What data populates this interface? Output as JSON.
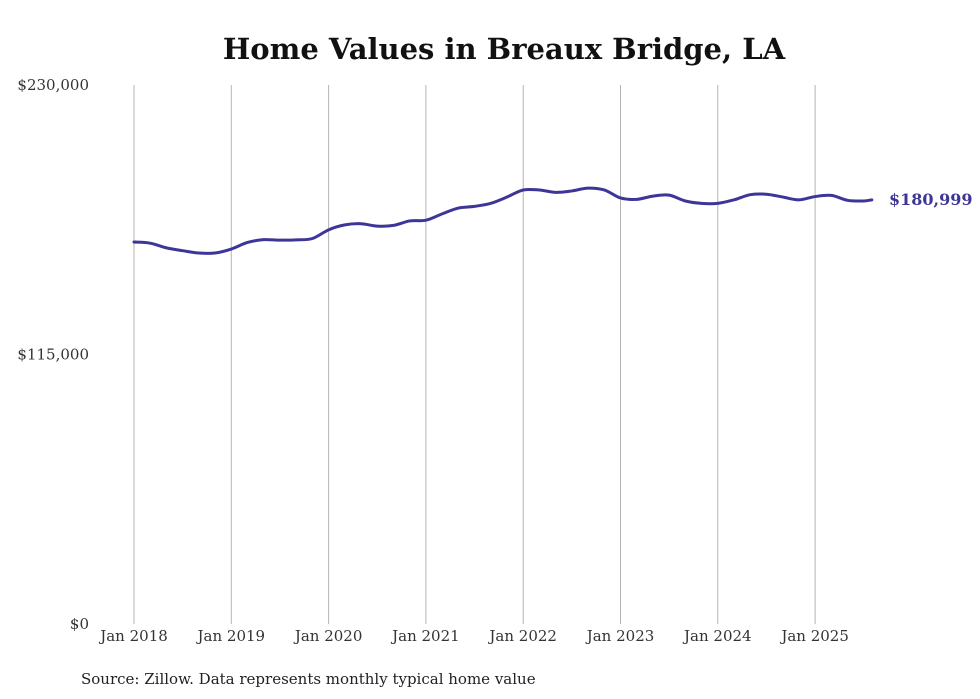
{
  "chart_data": {
    "type": "line",
    "title": "Home Values in Breaux Bridge, LA",
    "xlabel": "",
    "ylabel": "",
    "ylim": [
      0,
      230000
    ],
    "yticks": [
      {
        "value": 0,
        "label": "$0"
      },
      {
        "value": 115000,
        "label": "$115,000"
      },
      {
        "value": 230000,
        "label": "$230,000"
      }
    ],
    "xticks": [
      {
        "date": "2018-01",
        "label": "Jan 2018"
      },
      {
        "date": "2019-01",
        "label": "Jan 2019"
      },
      {
        "date": "2020-01",
        "label": "Jan 2020"
      },
      {
        "date": "2021-01",
        "label": "Jan 2021"
      },
      {
        "date": "2022-01",
        "label": "Jan 2022"
      },
      {
        "date": "2023-01",
        "label": "Jan 2023"
      },
      {
        "date": "2024-01",
        "label": "Jan 2024"
      },
      {
        "date": "2025-01",
        "label": "Jan 2025"
      }
    ],
    "grid": "vertical",
    "line_color": "#3d3598",
    "series": [
      {
        "points": [
          [
            "2018-01",
            163000
          ],
          [
            "2018-03",
            162500
          ],
          [
            "2018-05",
            160500
          ],
          [
            "2018-07",
            159300
          ],
          [
            "2018-09",
            158300
          ],
          [
            "2018-11",
            158300
          ],
          [
            "2019-01",
            160000
          ],
          [
            "2019-03",
            162800
          ],
          [
            "2019-05",
            164000
          ],
          [
            "2019-07",
            163800
          ],
          [
            "2019-09",
            163900
          ],
          [
            "2019-11",
            164500
          ],
          [
            "2020-01",
            168200
          ],
          [
            "2020-03",
            170300
          ],
          [
            "2020-05",
            170800
          ],
          [
            "2020-07",
            169800
          ],
          [
            "2020-09",
            170100
          ],
          [
            "2020-11",
            172000
          ],
          [
            "2021-01",
            172300
          ],
          [
            "2021-03",
            175000
          ],
          [
            "2021-05",
            177500
          ],
          [
            "2021-07",
            178200
          ],
          [
            "2021-09",
            179500
          ],
          [
            "2021-11",
            182200
          ],
          [
            "2022-01",
            185200
          ],
          [
            "2022-03",
            185200
          ],
          [
            "2022-05",
            184200
          ],
          [
            "2022-07",
            184800
          ],
          [
            "2022-09",
            186000
          ],
          [
            "2022-11",
            185200
          ],
          [
            "2023-01",
            181800
          ],
          [
            "2023-03",
            181200
          ],
          [
            "2023-05",
            182600
          ],
          [
            "2023-07",
            183000
          ],
          [
            "2023-09",
            180500
          ],
          [
            "2023-11",
            179500
          ],
          [
            "2024-01",
            179500
          ],
          [
            "2024-03",
            181000
          ],
          [
            "2024-05",
            183200
          ],
          [
            "2024-07",
            183400
          ],
          [
            "2024-09",
            182200
          ],
          [
            "2024-11",
            181000
          ],
          [
            "2025-01",
            182400
          ],
          [
            "2025-03",
            182900
          ],
          [
            "2025-05",
            180800
          ],
          [
            "2025-07",
            180500
          ],
          [
            "2025-08",
            180999
          ]
        ]
      }
    ],
    "end_label": "$180,999"
  },
  "source_note": "Source: Zillow. Data represents monthly typical home value"
}
